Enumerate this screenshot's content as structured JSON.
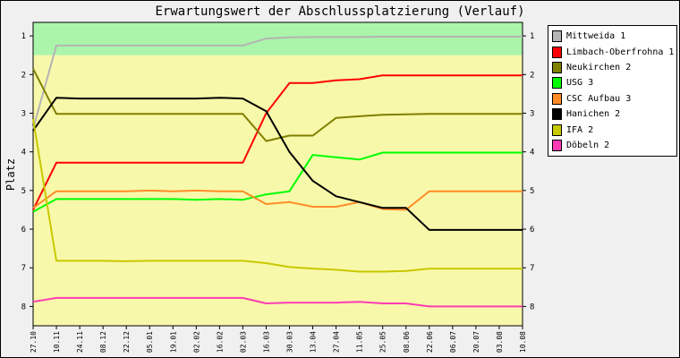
{
  "chart_data": {
    "type": "line",
    "title": "Erwartungswert der Abschlussplatzierung (Verlauf)",
    "ylabel": "Platz",
    "xlabel": "",
    "ylim": [
      0.65,
      8.5
    ],
    "y_inverted": true,
    "yticks": [
      "1",
      "2",
      "3",
      "4",
      "5",
      "6",
      "7",
      "8"
    ],
    "legend_position": "right",
    "grid": false,
    "background_bands": [
      {
        "from": 0.65,
        "to": 1.5,
        "color": "#aaf5aa"
      },
      {
        "from": 1.5,
        "to": 8.5,
        "color": "#f8f8aa"
      }
    ],
    "x": [
      "27.10",
      "10.11",
      "24.11",
      "08.12",
      "22.12",
      "05.01",
      "19.01",
      "02.02",
      "16.02",
      "02.03",
      "16.03",
      "30.03",
      "13.04",
      "27.04",
      "11.05",
      "25.05",
      "08.06",
      "22.06",
      "06.07",
      "20.07",
      "03.08",
      "10.08"
    ],
    "series": [
      {
        "name": "Mittweida 1",
        "color": "#b4b4b4",
        "values": [
          3.4,
          1.25,
          1.25,
          1.25,
          1.25,
          1.25,
          1.25,
          1.25,
          1.25,
          1.25,
          1.07,
          1.04,
          1.03,
          1.03,
          1.03,
          1.02,
          1.02,
          1.02,
          1.02,
          1.02,
          1.02,
          1.02
        ]
      },
      {
        "name": "Limbach-Oberfrohna 1",
        "color": "#ff0000",
        "values": [
          5.5,
          4.28,
          4.28,
          4.28,
          4.28,
          4.28,
          4.28,
          4.28,
          4.28,
          4.28,
          3.0,
          2.22,
          2.22,
          2.15,
          2.12,
          2.02,
          2.02,
          2.02,
          2.02,
          2.02,
          2.02,
          2.02
        ]
      },
      {
        "name": "Neukirchen 2",
        "color": "#7f7f00",
        "values": [
          1.85,
          3.02,
          3.02,
          3.02,
          3.02,
          3.02,
          3.02,
          3.02,
          3.02,
          3.02,
          3.72,
          3.58,
          3.58,
          3.12,
          3.08,
          3.04,
          3.03,
          3.02,
          3.02,
          3.02,
          3.02,
          3.02
        ]
      },
      {
        "name": "USG 3",
        "color": "#00ff00",
        "values": [
          5.55,
          5.22,
          5.22,
          5.22,
          5.22,
          5.22,
          5.22,
          5.24,
          5.22,
          5.24,
          5.1,
          5.02,
          4.08,
          4.14,
          4.2,
          4.02,
          4.02,
          4.02,
          4.02,
          4.02,
          4.02,
          4.02
        ]
      },
      {
        "name": "CSC Aufbau 3",
        "color": "#ff8c28",
        "values": [
          5.45,
          5.02,
          5.02,
          5.02,
          5.02,
          5.0,
          5.02,
          5.0,
          5.02,
          5.02,
          5.35,
          5.3,
          5.42,
          5.42,
          5.3,
          5.48,
          5.5,
          5.02,
          5.02,
          5.02,
          5.02,
          5.02
        ]
      },
      {
        "name": "Hanichen 2",
        "color": "#000000",
        "values": [
          3.45,
          2.6,
          2.62,
          2.62,
          2.62,
          2.62,
          2.62,
          2.62,
          2.6,
          2.62,
          2.95,
          4.0,
          4.75,
          5.15,
          5.3,
          5.45,
          5.45,
          6.02,
          6.02,
          6.02,
          6.02,
          6.02
        ]
      },
      {
        "name": "IFA 2",
        "color": "#c8c800",
        "values": [
          3.15,
          6.82,
          6.82,
          6.82,
          6.83,
          6.82,
          6.82,
          6.82,
          6.82,
          6.82,
          6.88,
          6.98,
          7.02,
          7.05,
          7.1,
          7.1,
          7.08,
          7.02,
          7.02,
          7.02,
          7.02,
          7.02
        ]
      },
      {
        "name": "Döbeln 2",
        "color": "#ff3cb4",
        "values": [
          7.88,
          7.78,
          7.78,
          7.78,
          7.78,
          7.78,
          7.78,
          7.78,
          7.78,
          7.78,
          7.92,
          7.9,
          7.9,
          7.9,
          7.88,
          7.92,
          7.92,
          8.0,
          8.0,
          8.0,
          8.0,
          8.0
        ]
      }
    ]
  }
}
